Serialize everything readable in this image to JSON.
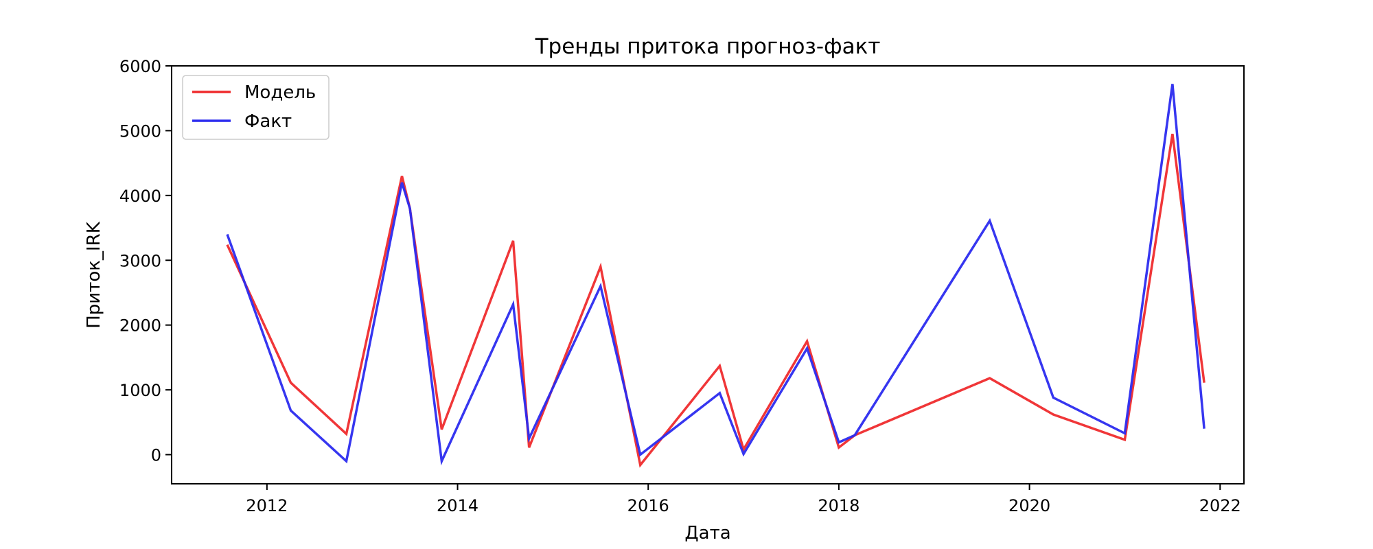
{
  "chart_data": {
    "type": "line",
    "title": "Тренды притока прогноз-факт",
    "xlabel": "Дата",
    "ylabel": "Приток_IRK",
    "x_axis_kind": "date",
    "xlim": [
      "2011-01-01",
      "2022-04-01"
    ],
    "ylim": [
      -450,
      6000
    ],
    "x_ticks": [
      "2012",
      "2014",
      "2016",
      "2018",
      "2020",
      "2022"
    ],
    "y_ticks": [
      "0",
      "1000",
      "2000",
      "3000",
      "4000",
      "5000",
      "6000"
    ],
    "grid": false,
    "legend_position": "top-left",
    "x": [
      "2011-08",
      "2012-04",
      "2012-11",
      "2013-06",
      "2013-07",
      "2013-11",
      "2014-08",
      "2014-10",
      "2015-07",
      "2015-12",
      "2016-10",
      "2017-01",
      "2017-09",
      "2018-01",
      "2018-03",
      "2019-08",
      "2020-04",
      "2021-01",
      "2021-07",
      "2021-11"
    ],
    "series": [
      {
        "name": "Модель",
        "color": "#ef2b2d",
        "values": [
          3240,
          1110,
          320,
          4300,
          3800,
          390,
          3300,
          110,
          2900,
          -160,
          1370,
          80,
          1750,
          110,
          300,
          1180,
          620,
          230,
          4950,
          1110
        ]
      },
      {
        "name": "Факт",
        "color": "#2b2bef",
        "values": [
          3400,
          680,
          -100,
          4200,
          3800,
          -100,
          2320,
          250,
          2600,
          0,
          950,
          10,
          1640,
          190,
          300,
          3610,
          880,
          330,
          5720,
          400
        ]
      }
    ]
  }
}
